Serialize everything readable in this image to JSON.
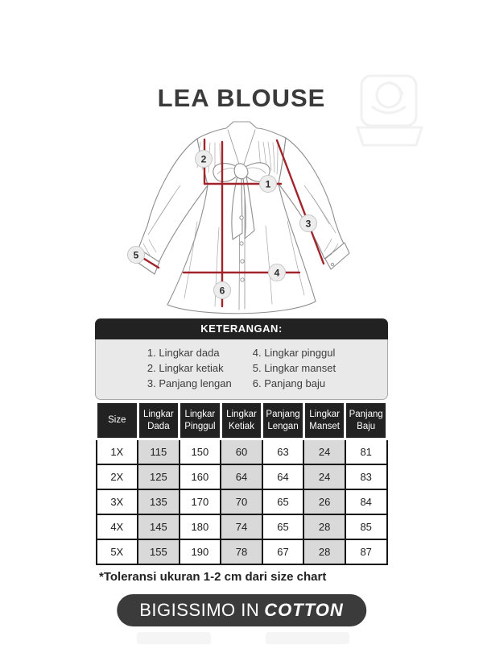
{
  "title": "LEA BLOUSE",
  "diagram": {
    "markers": [
      "1",
      "2",
      "3",
      "4",
      "5",
      "6"
    ]
  },
  "keterangan": {
    "header": "KETERANGAN:",
    "items_left": [
      "1. Lingkar dada",
      "2. Lingkar ketiak",
      "3. Panjang lengan"
    ],
    "items_right": [
      "4. Lingkar pinggul",
      "5. Lingkar manset",
      "6. Panjang baju"
    ]
  },
  "size_table": {
    "columns": [
      "Size",
      "Lingkar Dada",
      "Lingkar Pinggul",
      "Lingkar Ketiak",
      "Panjang Lengan",
      "Lingkar Manset",
      "Panjang Baju"
    ],
    "rows": [
      [
        "1X",
        "115",
        "150",
        "60",
        "63",
        "24",
        "81"
      ],
      [
        "2X",
        "125",
        "160",
        "64",
        "64",
        "24",
        "83"
      ],
      [
        "3X",
        "135",
        "170",
        "70",
        "65",
        "26",
        "84"
      ],
      [
        "4X",
        "145",
        "180",
        "74",
        "65",
        "28",
        "85"
      ],
      [
        "5X",
        "155",
        "190",
        "78",
        "67",
        "28",
        "87"
      ]
    ]
  },
  "footnote": "*Toleransi ukuran 1-2 cm dari size chart",
  "badge": {
    "brand": "BIGISSIMO IN",
    "material": "COTTON"
  },
  "colors": {
    "accent_red": "#a2242a",
    "header_bg": "#222222",
    "shade_gray": "#d9d9d9",
    "legend_bg": "#e9e9e9",
    "badge_bg": "#3b3b3b",
    "title_color": "#3a3a3a"
  }
}
